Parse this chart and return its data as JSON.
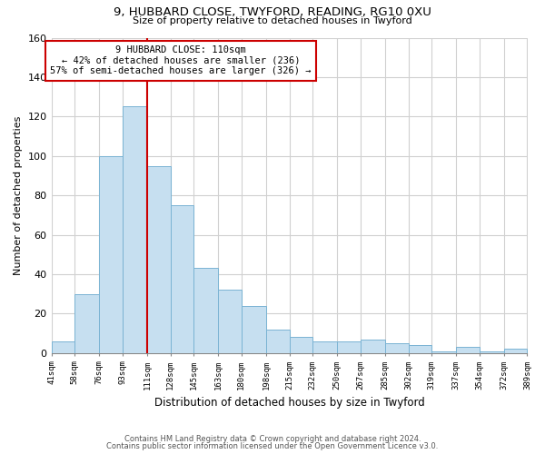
{
  "title": "9, HUBBARD CLOSE, TWYFORD, READING, RG10 0XU",
  "subtitle": "Size of property relative to detached houses in Twyford",
  "xlabel": "Distribution of detached houses by size in Twyford",
  "ylabel": "Number of detached properties",
  "bar_edges": [
    41,
    58,
    76,
    93,
    111,
    128,
    145,
    163,
    180,
    198,
    215,
    232,
    250,
    267,
    285,
    302,
    319,
    337,
    354,
    372,
    389
  ],
  "bar_heights": [
    6,
    30,
    100,
    125,
    95,
    75,
    43,
    32,
    24,
    12,
    8,
    6,
    6,
    7,
    5,
    4,
    1,
    3,
    1,
    2
  ],
  "bar_color": "#c6dff0",
  "bar_edge_color": "#7ab3d3",
  "vline_x": 111,
  "vline_color": "#cc0000",
  "annotation_line1": "9 HUBBARD CLOSE: 110sqm",
  "annotation_line2": "← 42% of detached houses are smaller (236)",
  "annotation_line3": "57% of semi-detached houses are larger (326) →",
  "ylim": [
    0,
    160
  ],
  "yticks": [
    0,
    20,
    40,
    60,
    80,
    100,
    120,
    140,
    160
  ],
  "tick_labels": [
    "41sqm",
    "58sqm",
    "76sqm",
    "93sqm",
    "111sqm",
    "128sqm",
    "145sqm",
    "163sqm",
    "180sqm",
    "198sqm",
    "215sqm",
    "232sqm",
    "250sqm",
    "267sqm",
    "285sqm",
    "302sqm",
    "319sqm",
    "337sqm",
    "354sqm",
    "372sqm",
    "389sqm"
  ],
  "footer_line1": "Contains HM Land Registry data © Crown copyright and database right 2024.",
  "footer_line2": "Contains public sector information licensed under the Open Government Licence v3.0.",
  "background_color": "#ffffff",
  "grid_color": "#d0d0d0"
}
